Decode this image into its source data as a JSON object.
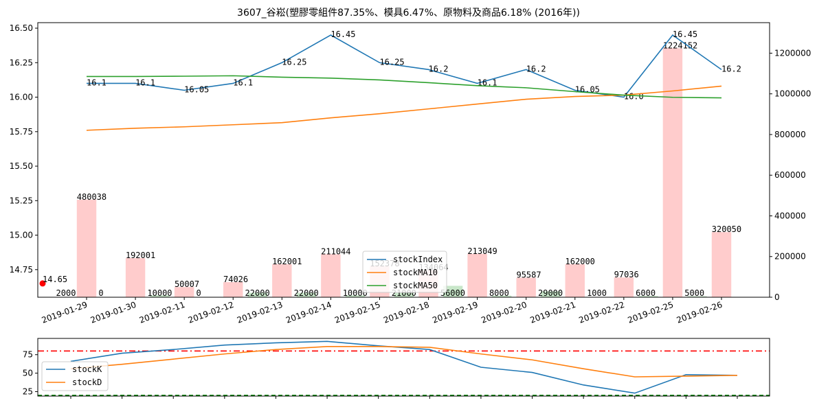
{
  "chart_data": [
    {
      "type": "line",
      "title": "3607_谷崧(塑膠零組件87.35%、模具6.47%、原物料及商品6.18% (2016年))",
      "categories": [
        "2019-01-29",
        "2019-01-30",
        "2019-02-11",
        "2019-02-12",
        "2019-02-13",
        "2019-02-14",
        "2019-02-15",
        "2019-02-18",
        "2019-02-19",
        "2019-02-20",
        "2019-02-21",
        "2019-02-22",
        "2019-02-25",
        "2019-02-26"
      ],
      "ylim": [
        14.55,
        16.54
      ],
      "yticks": [
        "14.75",
        "15.00",
        "15.25",
        "15.50",
        "15.75",
        "16.00",
        "16.25",
        "16.50"
      ],
      "y2lim": [
        0,
        1350000
      ],
      "y2ticks": [
        "0",
        "200000",
        "400000",
        "600000",
        "800000",
        "1000000",
        "1200000"
      ],
      "series": [
        {
          "name": "stockIndex",
          "color": "#1f77b4",
          "values": [
            16.1,
            16.1,
            16.05,
            16.1,
            16.25,
            16.45,
            16.25,
            16.2,
            16.1,
            16.2,
            16.05,
            16.0,
            16.45,
            16.2
          ],
          "labels": [
            "16.1",
            "16.1",
            "16.05",
            "16.1",
            "16.25",
            "16.45",
            "16.25",
            "16.2",
            "16.1",
            "16.2",
            "16.05",
            "16.0",
            "16.45",
            "16.2"
          ]
        },
        {
          "name": "stockMA10",
          "color": "#ff7f0e",
          "values": [
            15.76,
            15.775,
            15.785,
            15.8,
            15.815,
            15.85,
            15.88,
            15.915,
            15.95,
            15.985,
            16.005,
            16.015,
            16.045,
            16.08
          ]
        },
        {
          "name": "stockMA50",
          "color": "#2ca02c",
          "values": [
            16.15,
            16.15,
            16.152,
            16.155,
            16.145,
            16.138,
            16.125,
            16.105,
            16.083,
            16.068,
            16.04,
            16.015,
            15.999,
            15.995
          ]
        }
      ],
      "volume": {
        "up_color": "#ffcccc",
        "down_color": "#c8e6c9",
        "bars": [
          {
            "label": "480038",
            "value": 480038,
            "up": true
          },
          {
            "label": "0",
            "value": 0,
            "up": false
          },
          {
            "label": "192001",
            "value": 192001,
            "up": true
          },
          {
            "label": "10000",
            "value": 10000,
            "up": false
          },
          {
            "label": "50007",
            "value": 50007,
            "up": true
          },
          {
            "label": "0",
            "value": 0,
            "up": false
          },
          {
            "label": "74026",
            "value": 74026,
            "up": true
          },
          {
            "label": "22000",
            "value": 22000,
            "up": false
          },
          {
            "label": "162001",
            "value": 162001,
            "up": true
          },
          {
            "label": "22000",
            "value": 22000,
            "up": false
          },
          {
            "label": "211044",
            "value": 211044,
            "up": true
          },
          {
            "label": "10000",
            "value": 10000,
            "up": false
          },
          {
            "label": "152378",
            "value": 152378,
            "up": true
          },
          {
            "label": "21000",
            "value": 21000,
            "up": false
          },
          {
            "label": "134064",
            "value": 134064,
            "up": true
          },
          {
            "label": "56000",
            "value": 56000,
            "up": false
          },
          {
            "label": "213049",
            "value": 213049,
            "up": true
          },
          {
            "label": "8000",
            "value": 8000,
            "up": false
          },
          {
            "label": "95587",
            "value": 95587,
            "up": true
          },
          {
            "label": "29000",
            "value": 29000,
            "up": false
          },
          {
            "label": "162000",
            "value": 162000,
            "up": true
          },
          {
            "label": "1000",
            "value": 1000,
            "up": false
          },
          {
            "label": "97036",
            "value": 97036,
            "up": true
          },
          {
            "label": "6000",
            "value": 6000,
            "up": false
          },
          {
            "label": "1224152",
            "value": 1224152,
            "up": true
          },
          {
            "label": "5000",
            "value": 5000,
            "up": false
          },
          {
            "label": "320050",
            "value": 320050,
            "up": true
          }
        ],
        "extra_label": {
          "label": "2000",
          "value": 2000
        }
      },
      "marker": {
        "label": "14.65",
        "value": 14.65,
        "color": "#ff0000"
      },
      "legend": {
        "placement": "lower center"
      }
    },
    {
      "type": "line",
      "ylim": [
        19,
        97
      ],
      "yticks": [
        "25",
        "50",
        "75"
      ],
      "tick_count": 14,
      "series": [
        {
          "name": "stockK",
          "color": "#1f77b4",
          "values": [
            66,
            77,
            82,
            88,
            91,
            93,
            87,
            82,
            58,
            51,
            34,
            23,
            48,
            47
          ]
        },
        {
          "name": "stockD",
          "color": "#ff7f0e",
          "values": [
            56,
            62,
            69,
            76,
            82,
            86,
            86,
            85,
            76,
            68,
            56,
            45,
            46,
            47
          ]
        }
      ],
      "hlines": [
        {
          "value": 80,
          "color": "#ff0000",
          "style": "dash-dot"
        },
        {
          "value": 20,
          "color": "#008000",
          "style": "dashed"
        }
      ],
      "legend": {
        "placement": "lower left"
      }
    }
  ]
}
